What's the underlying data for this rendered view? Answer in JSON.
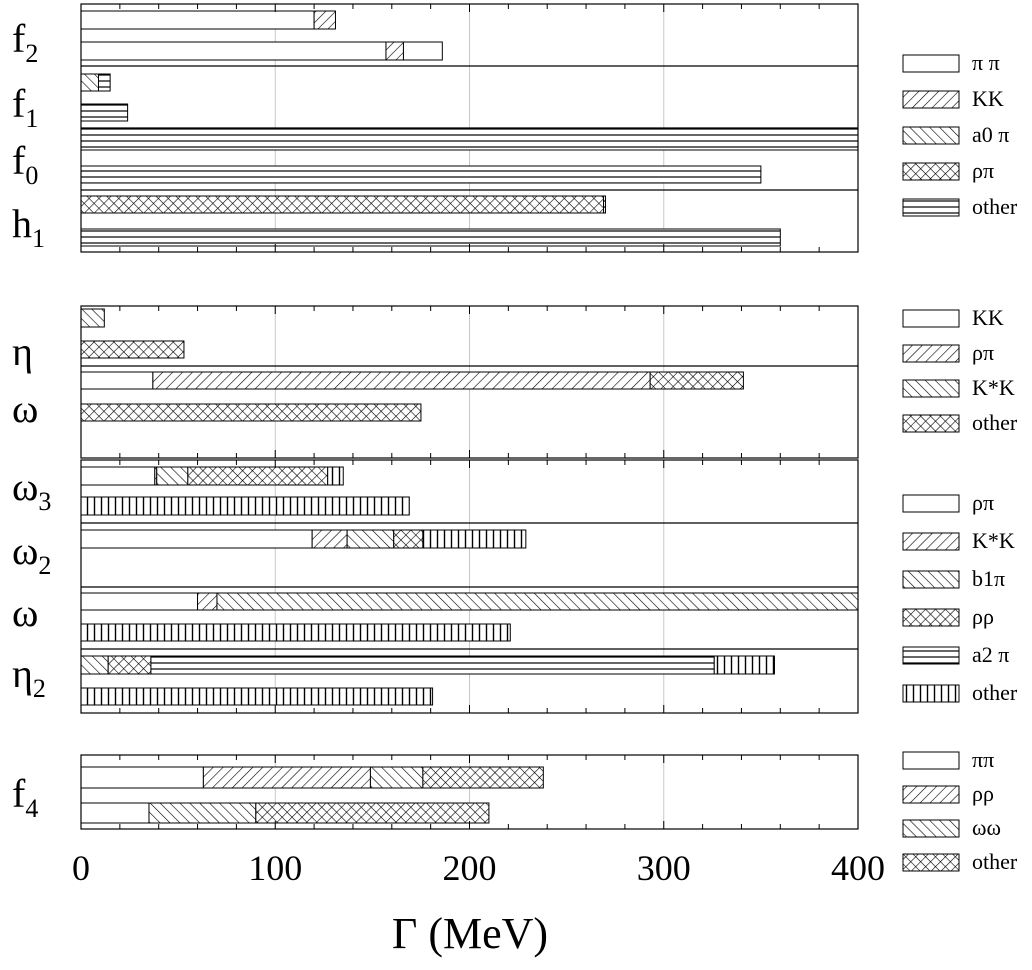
{
  "chart_data": {
    "type": "bar",
    "orientation": "horizontal",
    "stacked": true,
    "xlabel": "Γ  (MeV)",
    "xlim": [
      0,
      400
    ],
    "x_ticks": [
      0,
      100,
      200,
      300,
      400
    ],
    "grid": true,
    "legend_position": "right",
    "panels": [
      {
        "legend": [
          {
            "label": "π π",
            "pattern": "none"
          },
          {
            "label": "KK",
            "pattern": "diag-right"
          },
          {
            "label": "a0 π",
            "pattern": "diag-left"
          },
          {
            "label": "ρπ",
            "pattern": "cross"
          },
          {
            "label": "other",
            "pattern": "horizontal"
          }
        ],
        "groups": [
          {
            "label": "f",
            "sub": "2",
            "bars": [
              [
                {
                  "s": "none",
                  "v": 120
                },
                {
                  "s": "diag-right",
                  "v": 11
                }
              ],
              [
                {
                  "s": "none",
                  "v": 157
                },
                {
                  "s": "diag-right",
                  "v": 9
                },
                {
                  "s": "none",
                  "v": 20
                }
              ]
            ]
          },
          {
            "label": "f",
            "sub": "1",
            "bars": [
              [
                {
                  "s": "diag-left",
                  "v": 9
                },
                {
                  "s": "horizontal",
                  "v": 6
                }
              ],
              [
                {
                  "s": "horizontal",
                  "v": 24
                }
              ]
            ]
          },
          {
            "label": "f",
            "sub": "0",
            "bars": [
              [
                {
                  "s": "horizontal",
                  "v": 400
                }
              ],
              [
                {
                  "s": "horizontal",
                  "v": 350
                }
              ]
            ]
          },
          {
            "label": "h",
            "sub": "1",
            "bars": [
              [
                {
                  "s": "cross",
                  "v": 269
                },
                {
                  "s": "horizontal",
                  "v": 1
                }
              ],
              [
                {
                  "s": "horizontal",
                  "v": 360
                }
              ]
            ]
          }
        ]
      },
      {
        "legend": [
          {
            "label": "KK",
            "pattern": "none"
          },
          {
            "label": "ρπ",
            "pattern": "diag-right"
          },
          {
            "label": "K*K",
            "pattern": "diag-left"
          },
          {
            "label": "other",
            "pattern": "cross"
          }
        ],
        "groups": [
          {
            "label": "η",
            "sub": "",
            "bars": [
              [
                {
                  "s": "diag-left",
                  "v": 12
                }
              ],
              [
                {
                  "s": "cross",
                  "v": 53
                }
              ]
            ]
          },
          {
            "label": "ω",
            "sub": "",
            "bars": [
              [
                {
                  "s": "none",
                  "v": 37
                },
                {
                  "s": "diag-right",
                  "v": 256
                },
                {
                  "s": "cross",
                  "v": 48
                }
              ],
              [
                {
                  "s": "cross",
                  "v": 175
                }
              ]
            ]
          }
        ]
      },
      {
        "legend": [
          {
            "label": "ρπ",
            "pattern": "none"
          },
          {
            "label": "K*K",
            "pattern": "diag-right"
          },
          {
            "label": "b1π",
            "pattern": "diag-left"
          },
          {
            "label": "ρρ",
            "pattern": "cross"
          },
          {
            "label": "a2 π",
            "pattern": "horizontal"
          },
          {
            "label": "other",
            "pattern": "vertical"
          }
        ],
        "groups": [
          {
            "label": "ω",
            "sub": "3",
            "bars": [
              [
                {
                  "s": "none",
                  "v": 38
                },
                {
                  "s": "diag-right",
                  "v": 1
                },
                {
                  "s": "diag-left",
                  "v": 16
                },
                {
                  "s": "cross",
                  "v": 72
                },
                {
                  "s": "vertical",
                  "v": 8
                }
              ],
              [
                {
                  "s": "vertical",
                  "v": 169
                }
              ]
            ]
          },
          {
            "label": "ω",
            "sub": "2",
            "bars": [
              [
                {
                  "s": "none",
                  "v": 119
                },
                {
                  "s": "diag-right",
                  "v": 18
                },
                {
                  "s": "diag-left",
                  "v": 24
                },
                {
                  "s": "cross",
                  "v": 15
                },
                {
                  "s": "vertical",
                  "v": 53
                }
              ]
            ]
          },
          {
            "label": "ω",
            "sub": "",
            "bars": [
              [
                {
                  "s": "none",
                  "v": 60
                },
                {
                  "s": "diag-right",
                  "v": 10
                },
                {
                  "s": "diag-left",
                  "v": 330
                }
              ],
              [
                {
                  "s": "vertical",
                  "v": 221
                }
              ]
            ]
          },
          {
            "label": "η",
            "sub": "2",
            "bars": [
              [
                {
                  "s": "diag-left",
                  "v": 14
                },
                {
                  "s": "cross",
                  "v": 22
                },
                {
                  "s": "horizontal",
                  "v": 290
                },
                {
                  "s": "vertical",
                  "v": 31
                }
              ],
              [
                {
                  "s": "vertical",
                  "v": 181
                }
              ]
            ]
          }
        ]
      },
      {
        "legend": [
          {
            "label": "ππ",
            "pattern": "none"
          },
          {
            "label": "ρρ",
            "pattern": "diag-right"
          },
          {
            "label": "ωω",
            "pattern": "diag-left"
          },
          {
            "label": "other",
            "pattern": "cross"
          }
        ],
        "groups": [
          {
            "label": "f",
            "sub": "4",
            "bars": [
              [
                {
                  "s": "none",
                  "v": 63
                },
                {
                  "s": "diag-right",
                  "v": 86
                },
                {
                  "s": "diag-left",
                  "v": 27
                },
                {
                  "s": "cross",
                  "v": 62
                }
              ],
              [
                {
                  "s": "none",
                  "v": 35
                },
                {
                  "s": "diag-left",
                  "v": 55
                },
                {
                  "s": "cross",
                  "v": 120
                }
              ]
            ]
          }
        ]
      }
    ]
  }
}
